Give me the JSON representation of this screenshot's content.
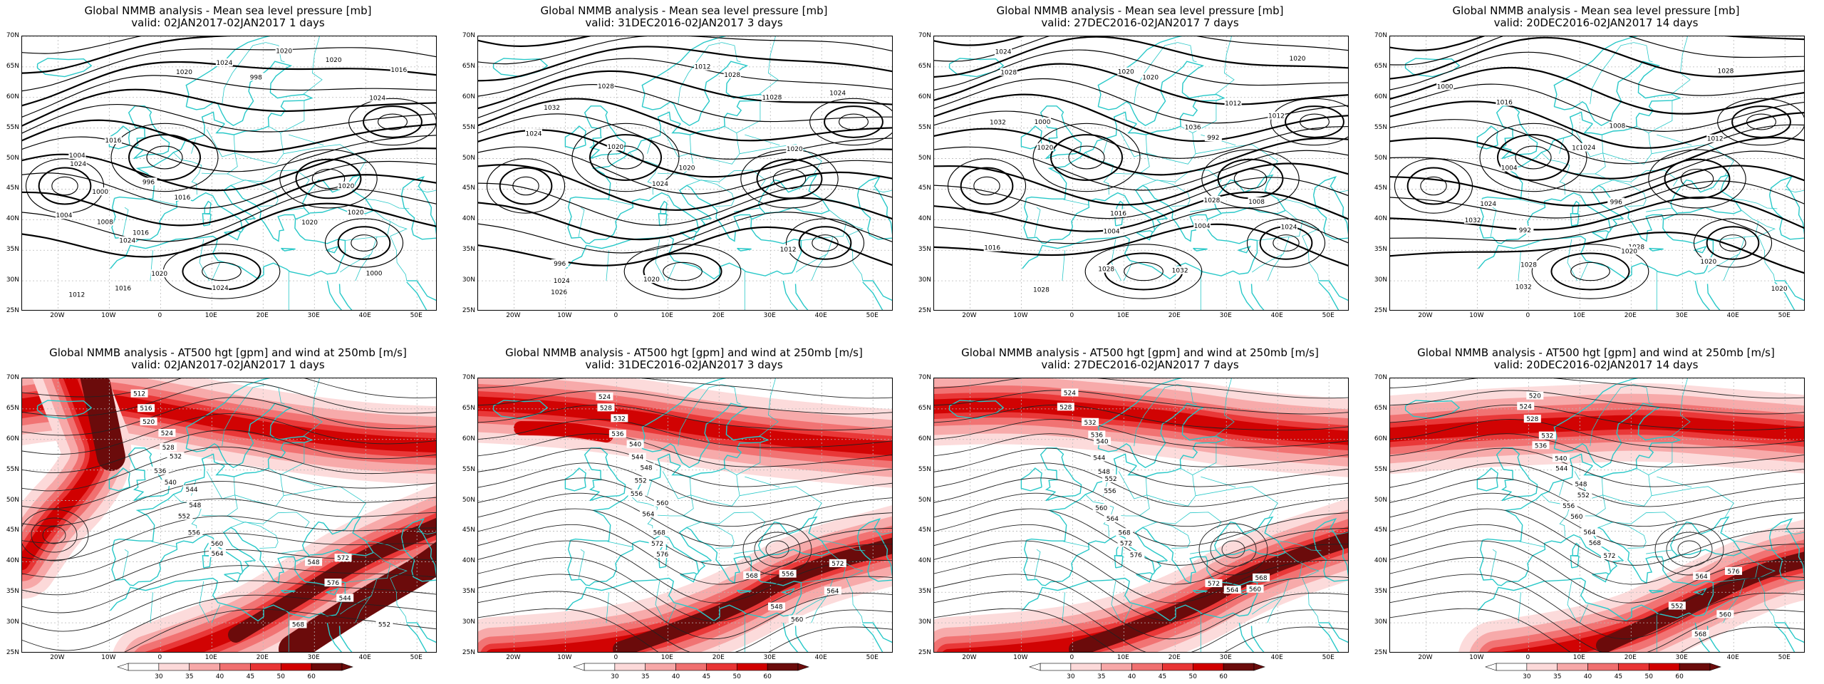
{
  "panels": [
    {
      "line1": "Global NMMB analysis - Mean sea level pressure [mb]",
      "line2": "valid: 02JAN2017-02JAN2017  1 days",
      "kind": "mslp",
      "labels": [
        "1004",
        "1000",
        "996",
        "998",
        "1000",
        "1016",
        "1020",
        "1016",
        "1016",
        "1008",
        "1004",
        "1012",
        "1016",
        "1020",
        "1024",
        "1024",
        "1024",
        "1020",
        "1016",
        "1020",
        "1020",
        "1024",
        "1020",
        "1020",
        "1024"
      ]
    },
    {
      "line1": "Global NMMB analysis - Mean sea level pressure [mb]",
      "line2": "valid: 31DEC2016-02JAN2017  3 days",
      "kind": "mslp",
      "labels": [
        "996",
        "1012",
        "1012",
        "1032",
        "1028",
        "1024",
        "1028",
        "1020",
        "1016",
        "1020",
        "1024",
        "1026",
        "1020",
        "1028",
        "1024",
        "1020",
        "1024"
      ]
    },
    {
      "line1": "Global NMMB analysis - Mean sea level pressure [mb]",
      "line2": "valid: 27DEC2016-02JAN2017  7 days",
      "kind": "mslp",
      "labels": [
        "1000",
        "1004",
        "1008",
        "992",
        "1004",
        "1012",
        "1016",
        "1012",
        "1016",
        "1020",
        "1024",
        "1028",
        "1032",
        "1032",
        "1036",
        "1028",
        "1020",
        "1024",
        "1020",
        "1020",
        "1028",
        "1028"
      ]
    },
    {
      "line1": "Global NMMB analysis - Mean sea level pressure [mb]",
      "line2": "valid: 20DEC2016-02JAN2017  14 days",
      "kind": "mslp",
      "labels": [
        "992",
        "996",
        "1000",
        "1004",
        "1008",
        "1012",
        "1016",
        "1020",
        "1024",
        "1028",
        "1032",
        "1032",
        "1020",
        "1024",
        "1028",
        "1020",
        "1028",
        "1024"
      ]
    },
    {
      "line1": "Global NMMB analysis - AT500 hgt [gpm] and wind at 250mb [m/s]",
      "line2": "valid: 02JAN2017-02JAN2017  1 days",
      "kind": "z500",
      "labels": [
        "512",
        "516",
        "520",
        "524",
        "528",
        "532",
        "536",
        "540",
        "544",
        "548",
        "552",
        "556",
        "560",
        "564",
        "568",
        "572",
        "576",
        "544",
        "552",
        "548"
      ]
    },
    {
      "line1": "Global NMMB analysis - AT500 hgt [gpm] and wind at 250mb [m/s]",
      "line2": "valid: 31DEC2016-02JAN2017  3 days",
      "kind": "z500",
      "labels": [
        "524",
        "528",
        "532",
        "536",
        "540",
        "544",
        "548",
        "552",
        "556",
        "560",
        "564",
        "568",
        "572",
        "576",
        "548",
        "556",
        "560",
        "564",
        "568",
        "572"
      ]
    },
    {
      "line1": "Global NMMB analysis - AT500 hgt [gpm] and wind at 250mb [m/s]",
      "line2": "valid: 27DEC2016-02JAN2017  7 days",
      "kind": "z500",
      "labels": [
        "524",
        "528",
        "532",
        "536",
        "540",
        "544",
        "548",
        "552",
        "556",
        "560",
        "564",
        "568",
        "572",
        "576",
        "560",
        "564",
        "568",
        "572"
      ]
    },
    {
      "line1": "Global NMMB analysis - AT500 hgt [gpm] and wind at 250mb [m/s]",
      "line2": "valid: 20DEC2016-02JAN2017  14 days",
      "kind": "z500",
      "labels": [
        "520",
        "524",
        "528",
        "532",
        "536",
        "540",
        "544",
        "548",
        "552",
        "556",
        "560",
        "564",
        "568",
        "572",
        "576",
        "552",
        "560",
        "564",
        "568"
      ]
    }
  ],
  "lat_labels": [
    "70N",
    "65N",
    "60N",
    "55N",
    "50N",
    "45N",
    "40N",
    "35N",
    "30N",
    "25N"
  ],
  "lon_labels": [
    "20W",
    "10W",
    "0",
    "10E",
    "20E",
    "30E",
    "40E",
    "50E"
  ],
  "colorbar": {
    "ticks": [
      "30",
      "35",
      "40",
      "45",
      "50",
      "60"
    ],
    "colors": [
      "#ffffff",
      "#fcd9d9",
      "#f7a8a8",
      "#f07070",
      "#e83535",
      "#d00000",
      "#6b0b0b"
    ]
  },
  "colors": {
    "coast": "#28c8c8",
    "contour": "#000000",
    "grid": "#b8b8b8"
  }
}
